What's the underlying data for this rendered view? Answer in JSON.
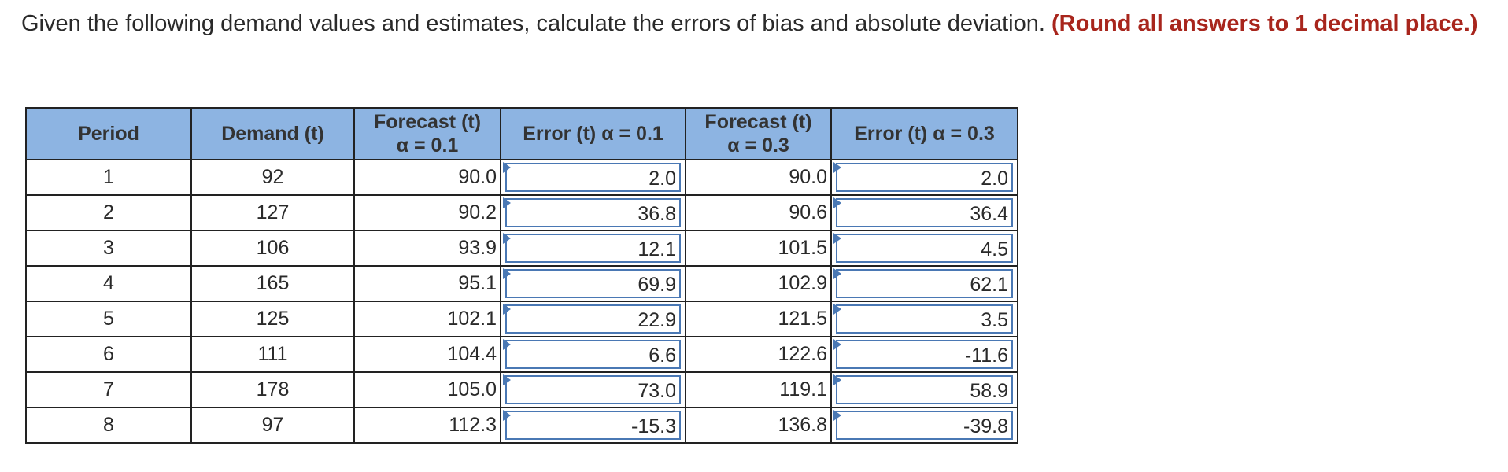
{
  "question": {
    "text": "Given the following demand values and estimates, calculate the errors of bias and absolute deviation.",
    "emphasis": "(Round all answers to 1 decimal place.)"
  },
  "colors": {
    "header_bg": "#8db4e2",
    "emphasis": "#a8251c",
    "input_border": "#4a78b4"
  },
  "table": {
    "headers": {
      "period": "Period",
      "demand": "Demand (t)",
      "forecast1_line1": "Forecast (t)",
      "forecast1_line2": "α = 0.1",
      "error1": "Error (t) α = 0.1",
      "forecast2_line1": "Forecast (t)",
      "forecast2_line2": "α = 0.3",
      "error2": "Error (t) α = 0.3"
    },
    "rows": [
      {
        "period": "1",
        "demand": "92",
        "forecast1": "90.0",
        "error1": "2.0",
        "forecast2": "90.0",
        "error2": "2.0"
      },
      {
        "period": "2",
        "demand": "127",
        "forecast1": "90.2",
        "error1": "36.8",
        "forecast2": "90.6",
        "error2": "36.4"
      },
      {
        "period": "3",
        "demand": "106",
        "forecast1": "93.9",
        "error1": "12.1",
        "forecast2": "101.5",
        "error2": "4.5"
      },
      {
        "period": "4",
        "demand": "165",
        "forecast1": "95.1",
        "error1": "69.9",
        "forecast2": "102.9",
        "error2": "62.1"
      },
      {
        "period": "5",
        "demand": "125",
        "forecast1": "102.1",
        "error1": "22.9",
        "forecast2": "121.5",
        "error2": "3.5"
      },
      {
        "period": "6",
        "demand": "111",
        "forecast1": "104.4",
        "error1": "6.6",
        "forecast2": "122.6",
        "error2": "-11.6"
      },
      {
        "period": "7",
        "demand": "178",
        "forecast1": "105.0",
        "error1": "73.0",
        "forecast2": "119.1",
        "error2": "58.9"
      },
      {
        "period": "8",
        "demand": "97",
        "forecast1": "112.3",
        "error1": "-15.3",
        "forecast2": "136.8",
        "error2": "-39.8"
      }
    ]
  }
}
